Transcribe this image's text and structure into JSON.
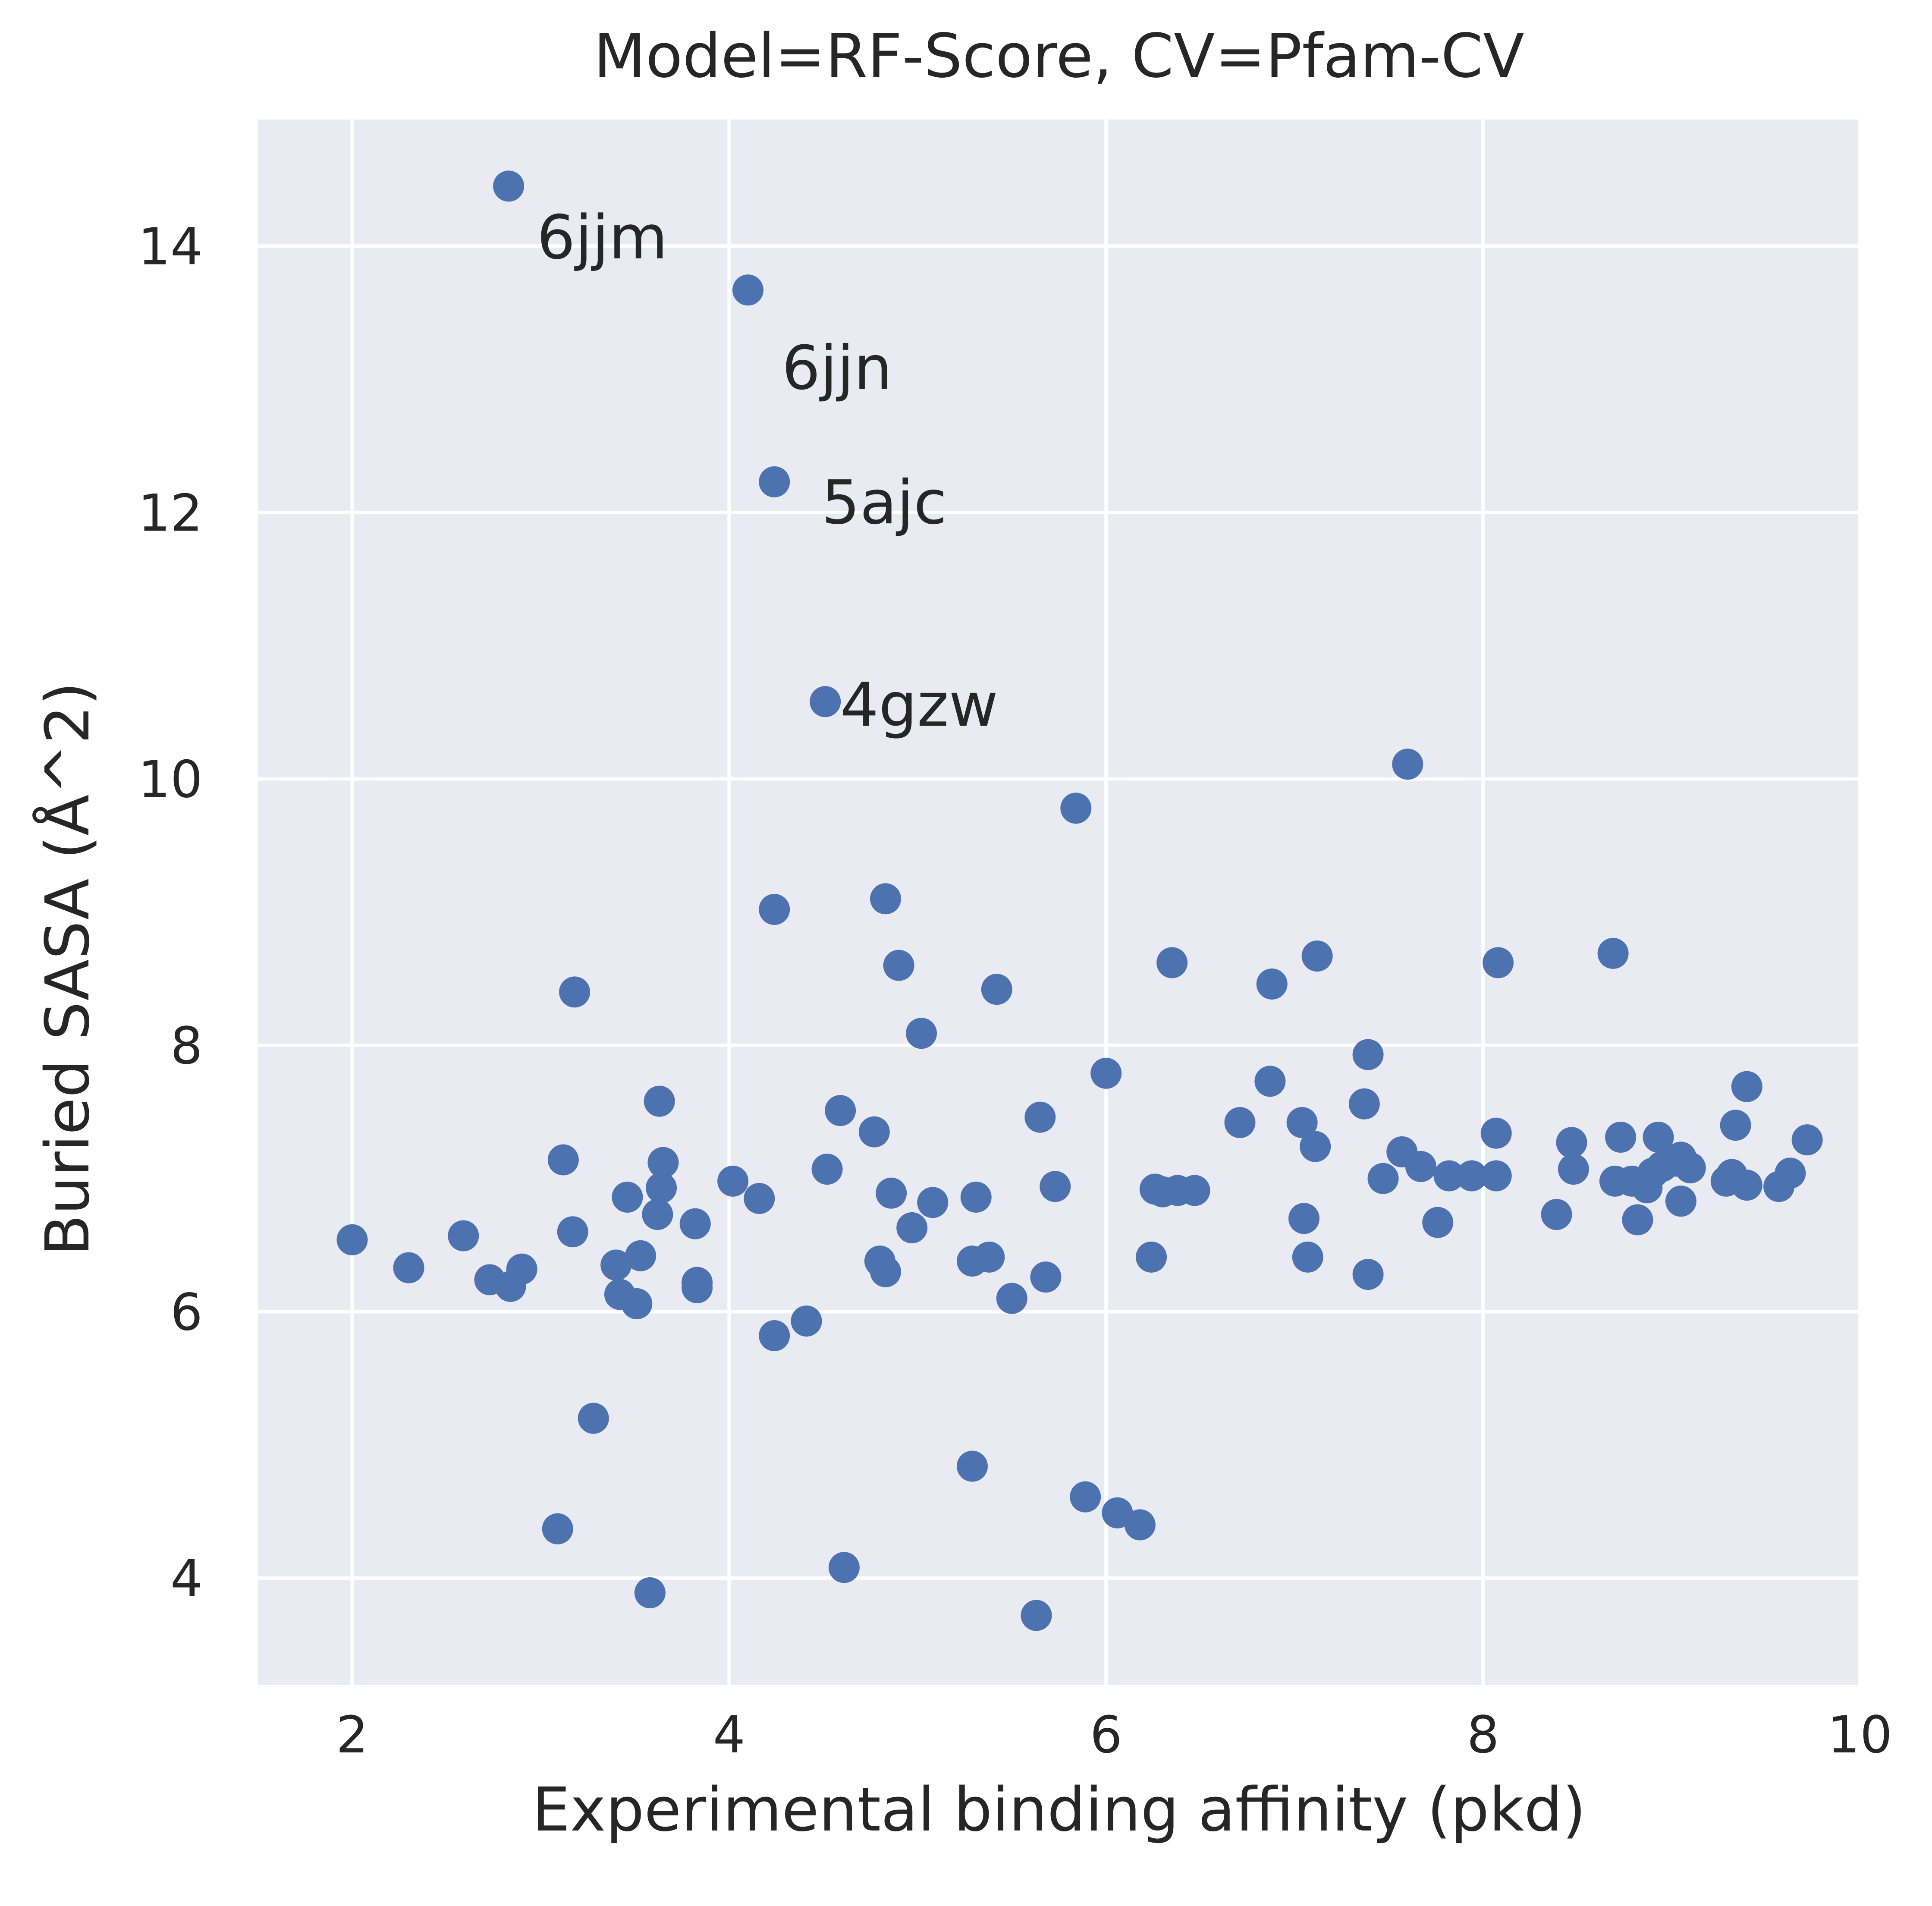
{
  "chart_data": {
    "type": "scatter",
    "title": "Model=RF-Score, CV=Pfam-CV",
    "xlabel": "Experimental binding affinity (pkd)",
    "ylabel": "Buried SASA (Å^2)",
    "xlim": [
      1.5,
      10
    ],
    "ylim": [
      3.2,
      14.95
    ],
    "xticks": [
      2,
      4,
      6,
      8,
      10
    ],
    "yticks": [
      4,
      6,
      8,
      10,
      12,
      14
    ],
    "grid": true,
    "background_color": "#eaeaf2",
    "grid_color": "#ffffff",
    "marker_color": "#4c72b0",
    "text_color": "#262626",
    "points": [
      [
        2.83,
        14.45
      ],
      [
        4.1,
        13.67
      ],
      [
        4.24,
        12.23
      ],
      [
        4.51,
        10.58
      ],
      [
        7.6,
        10.11
      ],
      [
        5.84,
        9.78
      ],
      [
        4.83,
        9.1
      ],
      [
        4.24,
        9.02
      ],
      [
        4.9,
        8.6
      ],
      [
        3.18,
        8.4
      ],
      [
        5.42,
        8.42
      ],
      [
        5.02,
        8.09
      ],
      [
        6.35,
        8.62
      ],
      [
        6.88,
        8.46
      ],
      [
        7.12,
        8.67
      ],
      [
        8.08,
        8.62
      ],
      [
        8.69,
        8.69
      ],
      [
        7.39,
        7.93
      ],
      [
        6.0,
        7.79
      ],
      [
        6.87,
        7.73
      ],
      [
        3.63,
        7.58
      ],
      [
        4.59,
        7.51
      ],
      [
        5.65,
        7.46
      ],
      [
        4.77,
        7.35
      ],
      [
        6.71,
        7.42
      ],
      [
        7.04,
        7.42
      ],
      [
        7.37,
        7.56
      ],
      [
        9.4,
        7.69
      ],
      [
        3.12,
        7.14
      ],
      [
        3.65,
        7.12
      ],
      [
        4.52,
        7.07
      ],
      [
        7.11,
        7.24
      ],
      [
        7.57,
        7.2
      ],
      [
        7.67,
        7.09
      ],
      [
        8.07,
        7.34
      ],
      [
        8.47,
        7.27
      ],
      [
        8.73,
        7.31
      ],
      [
        8.93,
        7.31
      ],
      [
        9.34,
        7.4
      ],
      [
        9.72,
        7.29
      ],
      [
        3.64,
        6.93
      ],
      [
        4.02,
        6.98
      ],
      [
        4.16,
        6.85
      ],
      [
        3.46,
        6.86
      ],
      [
        3.62,
        6.73
      ],
      [
        3.82,
        6.66
      ],
      [
        4.86,
        6.89
      ],
      [
        5.08,
        6.82
      ],
      [
        5.31,
        6.86
      ],
      [
        5.73,
        6.94
      ],
      [
        4.97,
        6.63
      ],
      [
        6.26,
        6.92
      ],
      [
        6.3,
        6.9
      ],
      [
        6.38,
        6.91
      ],
      [
        6.47,
        6.91
      ],
      [
        7.47,
        7.0
      ],
      [
        7.82,
        7.02
      ],
      [
        7.94,
        7.02
      ],
      [
        8.07,
        7.02
      ],
      [
        8.48,
        7.07
      ],
      [
        8.7,
        6.98
      ],
      [
        8.79,
        6.98
      ],
      [
        8.87,
        6.93
      ],
      [
        8.9,
        7.04
      ],
      [
        8.95,
        7.09
      ],
      [
        9.02,
        7.13
      ],
      [
        9.05,
        7.16
      ],
      [
        9.1,
        7.08
      ],
      [
        9.29,
        6.98
      ],
      [
        9.32,
        7.03
      ],
      [
        9.4,
        6.95
      ],
      [
        9.57,
        6.94
      ],
      [
        9.63,
        7.04
      ],
      [
        7.05,
        6.7
      ],
      [
        7.76,
        6.67
      ],
      [
        8.39,
        6.73
      ],
      [
        8.82,
        6.69
      ],
      [
        9.05,
        6.83
      ],
      [
        2.0,
        6.54
      ],
      [
        2.3,
        6.33
      ],
      [
        2.59,
        6.57
      ],
      [
        2.73,
        6.24
      ],
      [
        2.84,
        6.19
      ],
      [
        2.9,
        6.32
      ],
      [
        3.17,
        6.6
      ],
      [
        3.4,
        6.35
      ],
      [
        3.53,
        6.42
      ],
      [
        3.42,
        6.13
      ],
      [
        3.51,
        6.06
      ],
      [
        3.83,
        6.22
      ],
      [
        3.83,
        6.18
      ],
      [
        4.8,
        6.38
      ],
      [
        4.83,
        6.3
      ],
      [
        5.29,
        6.38
      ],
      [
        5.38,
        6.41
      ],
      [
        5.5,
        6.1
      ],
      [
        5.68,
        6.26
      ],
      [
        6.24,
        6.41
      ],
      [
        7.07,
        6.41
      ],
      [
        7.39,
        6.28
      ],
      [
        4.24,
        5.82
      ],
      [
        4.41,
        5.93
      ],
      [
        3.28,
        5.2
      ],
      [
        5.29,
        4.84
      ],
      [
        5.89,
        4.61
      ],
      [
        6.06,
        4.49
      ],
      [
        6.18,
        4.4
      ],
      [
        3.09,
        4.37
      ],
      [
        4.61,
        4.08
      ],
      [
        3.58,
        3.89
      ],
      [
        5.63,
        3.72
      ]
    ],
    "annotations": [
      {
        "text": "6jjm",
        "x": 2.98,
        "y": 14.07
      },
      {
        "text": "6jjn",
        "x": 4.28,
        "y": 13.09
      },
      {
        "text": "5ajc",
        "x": 4.49,
        "y": 12.08
      },
      {
        "text": "4gzw",
        "x": 4.59,
        "y": 10.56
      }
    ]
  }
}
